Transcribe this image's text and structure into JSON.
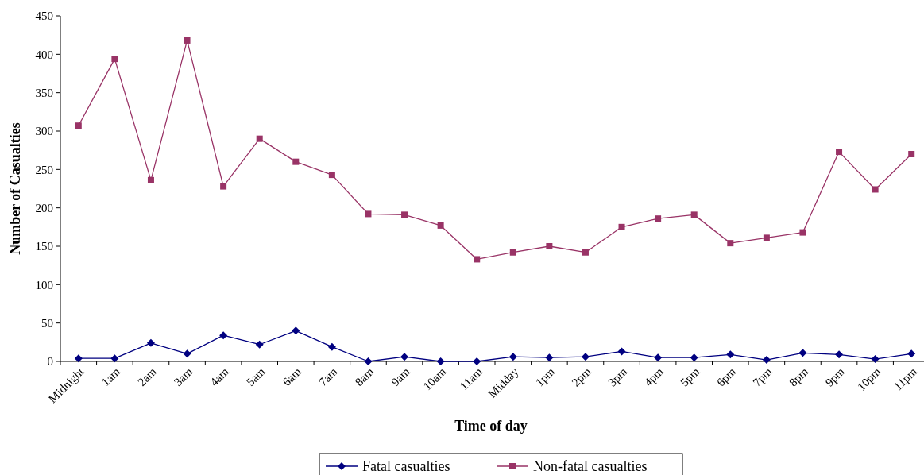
{
  "chart_data": {
    "type": "line",
    "xlabel": "Time of day",
    "ylabel": "Number of Casualties",
    "categories": [
      "Midnight",
      "1am",
      "2am",
      "3am",
      "4am",
      "5am",
      "6am",
      "7am",
      "8am",
      "9am",
      "10am",
      "11am",
      "Midday",
      "1pm",
      "2pm",
      "3pm",
      "4pm",
      "5pm",
      "6pm",
      "7pm",
      "8pm",
      "9pm",
      "10pm",
      "11pm"
    ],
    "series": [
      {
        "name": "Fatal casualties",
        "color": "#000080",
        "marker": "diamond",
        "values": [
          4,
          4,
          24,
          10,
          34,
          22,
          40,
          19,
          0,
          6,
          0,
          0,
          6,
          5,
          6,
          13,
          5,
          5,
          9,
          2,
          11,
          9,
          3,
          10
        ]
      },
      {
        "name": "Non-fatal casualties",
        "color": "#993366",
        "marker": "square",
        "values": [
          307,
          394,
          236,
          418,
          228,
          290,
          260,
          243,
          192,
          191,
          177,
          133,
          142,
          150,
          142,
          175,
          186,
          191,
          154,
          161,
          168,
          273,
          224,
          270
        ]
      }
    ],
    "ylim": [
      0,
      450
    ],
    "yticks": [
      0,
      50,
      100,
      150,
      200,
      250,
      300,
      350,
      400,
      450
    ],
    "grid": false,
    "legend": "bottom"
  }
}
